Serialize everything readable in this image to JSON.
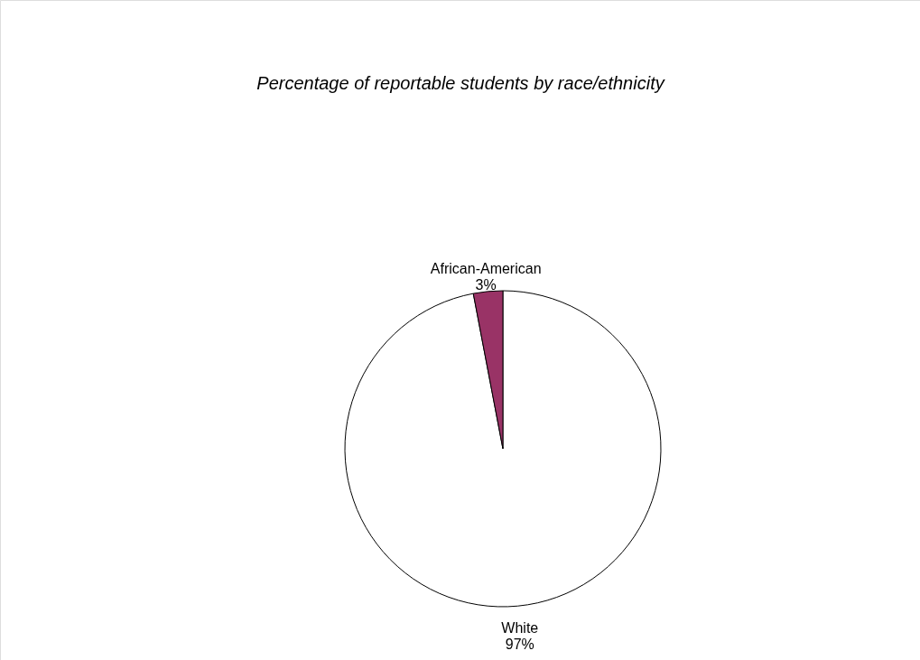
{
  "chart_data": {
    "type": "pie",
    "title": "Percentage of reportable students by race/ethnicity",
    "categories": [
      "White",
      "African-American"
    ],
    "values": [
      97,
      3
    ],
    "colors": [
      "#ffffff",
      "#993366"
    ],
    "value_labels": [
      "97%",
      "3%"
    ],
    "legend": false
  }
}
